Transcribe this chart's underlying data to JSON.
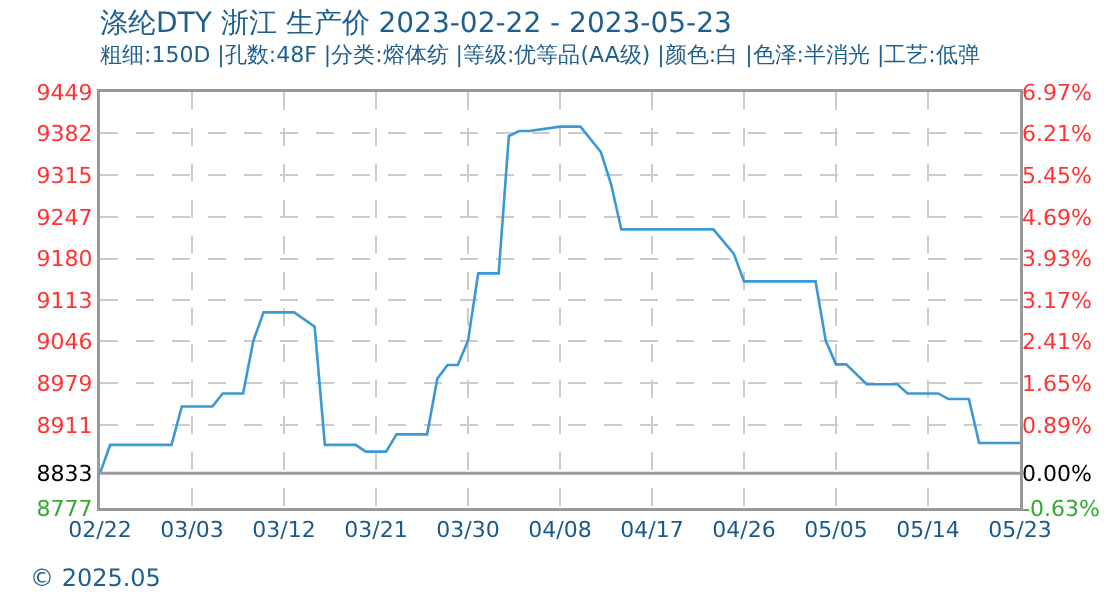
{
  "chart_data": {
    "type": "line",
    "title": "涤纶DTY 浙江 生产价 2023-02-22 - 2023-05-23",
    "subtitle": "粗细:150D |孔数:48F |分类:熔体纺 |等级:优等品(AA级) |颜色:白 |色泽:半消光 |工艺:低弹",
    "x": [
      "2023-02-22",
      "2023-02-23",
      "2023-03-01",
      "2023-03-02",
      "2023-03-05",
      "2023-03-06",
      "2023-03-08",
      "2023-03-09",
      "2023-03-10",
      "2023-03-13",
      "2023-03-15",
      "2023-03-16",
      "2023-03-19",
      "2023-03-20",
      "2023-03-22",
      "2023-03-23",
      "2023-03-26",
      "2023-03-27",
      "2023-03-28",
      "2023-03-29",
      "2023-03-30",
      "2023-03-31",
      "2023-04-02",
      "2023-04-03",
      "2023-04-04",
      "2023-04-05",
      "2023-04-08",
      "2023-04-10",
      "2023-04-12",
      "2023-04-13",
      "2023-04-14",
      "2023-04-23",
      "2023-04-25",
      "2023-04-26",
      "2023-05-03",
      "2023-05-04",
      "2023-05-05",
      "2023-05-06",
      "2023-05-08",
      "2023-05-11",
      "2023-05-12",
      "2023-05-15",
      "2023-05-16",
      "2023-05-18",
      "2023-05-19",
      "2023-05-23"
    ],
    "series": [
      {
        "color": "#3a98d4",
        "values": [
          8833,
          8879,
          8879,
          8941,
          8941,
          8962,
          8962,
          9047,
          9093,
          9093,
          9070,
          8879,
          8879,
          8868,
          8868,
          8896,
          8896,
          8986,
          9008,
          9008,
          9047,
          9156,
          9156,
          9378,
          9386,
          9386,
          9393,
          9393,
          9352,
          9300,
          9227,
          9227,
          9188,
          9143,
          9143,
          9047,
          9009,
          9009,
          8977,
          8977,
          8962,
          8962,
          8953,
          8953,
          8882,
          8882
        ]
      }
    ],
    "xlim": [
      "2023-02-22",
      "2023-05-23"
    ],
    "xticks": [
      {
        "value": "2023-02-22",
        "label": "02/22"
      },
      {
        "value": "2023-03-03",
        "label": "03/03"
      },
      {
        "value": "2023-03-12",
        "label": "03/12"
      },
      {
        "value": "2023-03-21",
        "label": "03/21"
      },
      {
        "value": "2023-03-30",
        "label": "03/30"
      },
      {
        "value": "2023-04-08",
        "label": "04/08"
      },
      {
        "value": "2023-04-17",
        "label": "04/17"
      },
      {
        "value": "2023-04-26",
        "label": "04/26"
      },
      {
        "value": "2023-05-05",
        "label": "05/05"
      },
      {
        "value": "2023-05-14",
        "label": "05/14"
      },
      {
        "value": "2023-05-23",
        "label": "05/23"
      }
    ],
    "ylim": [
      8777,
      9449
    ],
    "yticks": [
      8777,
      8833,
      8911,
      8979,
      9046,
      9113,
      9180,
      9247,
      9315,
      9382,
      9449
    ],
    "y2lim": [
      -0.63,
      6.97
    ],
    "y2ticks": [
      {
        "value": -0.63,
        "label": "-0.63%"
      },
      {
        "value": 0,
        "label": "0.00%"
      },
      {
        "value": 0.89,
        "label": "0.89%"
      },
      {
        "value": 1.65,
        "label": "1.65%"
      },
      {
        "value": 2.41,
        "label": "2.41%"
      },
      {
        "value": 3.17,
        "label": "3.17%"
      },
      {
        "value": 3.93,
        "label": "3.93%"
      },
      {
        "value": 4.69,
        "label": "4.69%"
      },
      {
        "value": 5.45,
        "label": "5.45%"
      },
      {
        "value": 6.21,
        "label": "6.21%"
      },
      {
        "value": 6.97,
        "label": "6.97%"
      }
    ],
    "ref_lines": [
      {
        "axis": "y",
        "value": 8833,
        "color": "#999999"
      }
    ],
    "grid": true,
    "line_style": "solid",
    "marker": "none",
    "annotations": [
      "© 2025.05"
    ]
  }
}
